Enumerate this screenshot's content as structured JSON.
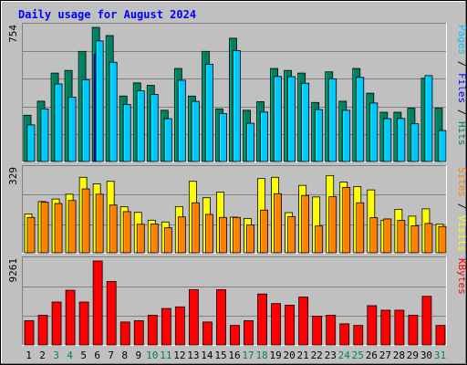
{
  "chart_data": {
    "type": "bar",
    "title": "Daily usage for August 2024",
    "days": [
      {
        "label": "1",
        "weekend": false
      },
      {
        "label": "2",
        "weekend": false
      },
      {
        "label": "3",
        "weekend": true
      },
      {
        "label": "4",
        "weekend": true
      },
      {
        "label": "5",
        "weekend": false
      },
      {
        "label": "6",
        "weekend": false
      },
      {
        "label": "7",
        "weekend": false
      },
      {
        "label": "8",
        "weekend": false
      },
      {
        "label": "9",
        "weekend": false
      },
      {
        "label": "10",
        "weekend": true
      },
      {
        "label": "11",
        "weekend": true
      },
      {
        "label": "12",
        "weekend": false
      },
      {
        "label": "13",
        "weekend": false
      },
      {
        "label": "14",
        "weekend": false
      },
      {
        "label": "15",
        "weekend": false
      },
      {
        "label": "16",
        "weekend": false
      },
      {
        "label": "17",
        "weekend": true
      },
      {
        "label": "18",
        "weekend": true
      },
      {
        "label": "19",
        "weekend": false
      },
      {
        "label": "20",
        "weekend": false
      },
      {
        "label": "21",
        "weekend": false
      },
      {
        "label": "22",
        "weekend": false
      },
      {
        "label": "23",
        "weekend": false
      },
      {
        "label": "24",
        "weekend": true
      },
      {
        "label": "25",
        "weekend": true
      },
      {
        "label": "26",
        "weekend": false
      },
      {
        "label": "27",
        "weekend": false
      },
      {
        "label": "28",
        "weekend": false
      },
      {
        "label": "29",
        "weekend": false
      },
      {
        "label": "30",
        "weekend": false
      },
      {
        "label": "31",
        "weekend": true
      }
    ],
    "panels": [
      {
        "ymax_label": "754",
        "ymax": 754,
        "legend": [
          {
            "text": "Pages",
            "color": "#00c8ff"
          },
          {
            "text": " / ",
            "color": "#000000"
          },
          {
            "text": "Files",
            "color": "#0000ff"
          },
          {
            "text": " / ",
            "color": "#000000"
          },
          {
            "text": "Hits",
            "color": "#008060"
          }
        ],
        "series": [
          {
            "name": "Hits",
            "color": "#008060",
            "values": [
              260,
              339,
              497,
              512,
              619,
              754,
              708,
              368,
              442,
              428,
              288,
              523,
              368,
              619,
              296,
              693,
              288,
              336,
              523,
              512,
              497,
              332,
              504,
              339,
              523,
              384,
              277,
              277,
              300,
              468,
              300
            ]
          },
          {
            "name": "Files",
            "color": "#0000ff",
            "values": [
              0,
              0,
              0,
              0,
              0,
              602,
              0,
              0,
              0,
              0,
              0,
              0,
              0,
              0,
              0,
              0,
              0,
              0,
              0,
              0,
              0,
              0,
              0,
              0,
              0,
              0,
              0,
              0,
              0,
              0,
              0
            ]
          },
          {
            "name": "Pages",
            "color": "#00c8ff",
            "values": [
              206,
              296,
              436,
              362,
              460,
              678,
              558,
              320,
              398,
              377,
              241,
              457,
              338,
              547,
              270,
              623,
              215,
              278,
              478,
              477,
              440,
              292,
              465,
              288,
              473,
              329,
              241,
              242,
              212,
              483,
              174
            ]
          }
        ]
      },
      {
        "ymax_label": "329",
        "ymax": 329,
        "legend": [
          {
            "text": "Sites",
            "color": "#ff8000"
          },
          {
            "text": " / ",
            "color": "#000000"
          },
          {
            "text": "Visits",
            "color": "#ffff00"
          }
        ],
        "series": [
          {
            "name": "Visits",
            "color": "#ffff00",
            "values": [
              154,
              203,
              213,
              232,
              299,
              273,
              283,
              182,
              160,
              129,
              122,
              183,
              283,
              218,
              240,
              141,
              136,
              294,
              299,
              159,
              267,
              221,
              306,
              280,
              262,
              249,
              129,
              172,
              145,
              174,
              113
            ]
          },
          {
            "name": "Sites",
            "color": "#ff8000",
            "values": [
              140,
              200,
              195,
              207,
              253,
              232,
              189,
              163,
              113,
              114,
              99,
              142,
              198,
              152,
              140,
              140,
              110,
              169,
              234,
              143,
              227,
              106,
              222,
              259,
              198,
              139,
              134,
              128,
              107,
              116,
              104
            ]
          }
        ]
      },
      {
        "ymax_label": "9261",
        "ymax": 9261,
        "legend": [
          {
            "text": "KBytes",
            "color": "#ff0000"
          }
        ],
        "series": [
          {
            "name": "KBytes",
            "color": "#ff0000",
            "values": [
              2670,
              3270,
              4730,
              6030,
              4730,
              9261,
              7000,
              2530,
              2670,
              3270,
              4020,
              4200,
              6090,
              2530,
              6090,
              2150,
              2670,
              5620,
              4560,
              4380,
              5280,
              3180,
              3270,
              2330,
              2150,
              4330,
              3830,
              3830,
              3270,
              5360,
              2150
            ]
          }
        ]
      }
    ]
  }
}
